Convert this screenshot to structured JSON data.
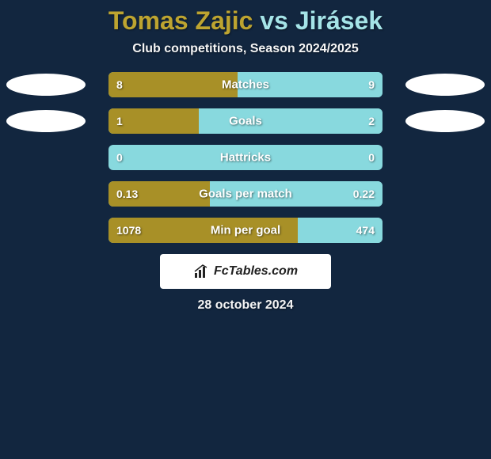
{
  "colors": {
    "background": "#12263f",
    "title_left": "#bda430",
    "title_right": "#a5e4e8",
    "subtitle": "#f5f5f5",
    "left_bar": "#a89027",
    "right_bar": "#88d9de",
    "text": "#ffffff",
    "logo_bg": "#ffffff",
    "logo_text": "#222222",
    "date_text": "#f5f5f5"
  },
  "title": {
    "left": "Tomas Zajic",
    "vs": " vs ",
    "right": "Jirásek"
  },
  "subtitle": "Club competitions, Season 2024/2025",
  "bar_style": {
    "track_width": 346,
    "track_height": 32,
    "border_radius": 6,
    "label_fontsize": 15,
    "value_fontsize": 14
  },
  "oval_style": {
    "width": 100,
    "height": 28
  },
  "rows": [
    {
      "label": "Matches",
      "left_value": "8",
      "right_value": "9",
      "left_pct": 47,
      "show_ovals": true
    },
    {
      "label": "Goals",
      "left_value": "1",
      "right_value": "2",
      "left_pct": 33,
      "show_ovals": true
    },
    {
      "label": "Hattricks",
      "left_value": "0",
      "right_value": "0",
      "left_pct": 0,
      "show_ovals": false
    },
    {
      "label": "Goals per match",
      "left_value": "0.13",
      "right_value": "0.22",
      "left_pct": 37,
      "show_ovals": false
    },
    {
      "label": "Min per goal",
      "left_value": "1078",
      "right_value": "474",
      "left_pct": 69,
      "show_ovals": false
    }
  ],
  "logo": "FcTables.com",
  "date": "28 october 2024"
}
